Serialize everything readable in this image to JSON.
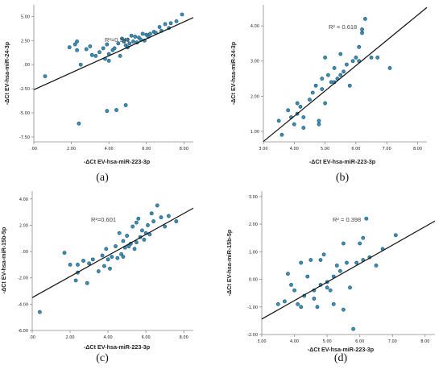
{
  "chart_data": [
    {
      "type": "scatter",
      "panel_label": "(a)",
      "xlabel": "-ΔCt EV-hsa-miR-223-3p",
      "ylabel": "-ΔCt EV-hsa-miR-24-3p",
      "xlim": [
        0,
        8.5
      ],
      "ylim": [
        -8,
        6.2
      ],
      "xticks": [
        0,
        2,
        4,
        6,
        8
      ],
      "xtick_labels": [
        ".00",
        "2.00",
        "4.00",
        "6.00",
        "8.00"
      ],
      "yticks": [
        -7.5,
        -5,
        -2.5,
        0,
        2.5,
        5
      ],
      "ytick_labels": [
        "-7.50",
        "-5.00",
        "-2.50",
        ".00",
        "2.50",
        "5.00"
      ],
      "r2_text": "R²=0.341",
      "fit": {
        "intercept": -2.6,
        "slope": 0.88
      },
      "x": [
        0.6,
        1.9,
        2.2,
        2.3,
        2.3,
        2.5,
        2.8,
        3.0,
        3.1,
        3.3,
        3.5,
        3.7,
        3.8,
        3.9,
        4.0,
        4.0,
        4.2,
        4.3,
        4.5,
        4.6,
        4.7,
        4.8,
        4.8,
        4.9,
        5.0,
        5.0,
        5.1,
        5.2,
        5.3,
        5.4,
        5.5,
        5.6,
        5.7,
        5.8,
        5.9,
        6.0,
        6.1,
        6.2,
        6.4,
        6.5,
        6.7,
        6.8,
        7.0,
        7.2,
        7.3,
        7.6,
        7.9,
        2.4,
        3.9,
        4.4,
        4.9
      ],
      "y": [
        -1.2,
        1.8,
        2.1,
        1.5,
        2.4,
        0.0,
        1.6,
        1.9,
        1.0,
        0.9,
        1.3,
        1.7,
        0.6,
        2.1,
        1.1,
        0.4,
        1.5,
        1.7,
        2.2,
        0.9,
        2.7,
        2.4,
        2.5,
        2.0,
        1.8,
        2.6,
        2.2,
        3.0,
        2.4,
        2.9,
        2.3,
        2.8,
        2.6,
        3.2,
        2.5,
        3.1,
        2.9,
        3.2,
        3.4,
        3.3,
        3.9,
        3.5,
        4.2,
        3.8,
        4.3,
        4.5,
        5.2,
        -6.1,
        -4.8,
        -4.7,
        -4.2
      ]
    },
    {
      "type": "scatter",
      "panel_label": "(b)",
      "xlabel": "-ΔCt EV-hsa-miR-223-3p",
      "ylabel": "-ΔCt EV-hsa-miR-24-3p",
      "xlim": [
        3,
        8.3
      ],
      "ylim": [
        0.7,
        4.6
      ],
      "xticks": [
        3,
        4,
        5,
        6,
        7,
        8
      ],
      "xtick_labels": [
        "3.00",
        "4.00",
        "5.00",
        "6.00",
        "7.00",
        "8.00"
      ],
      "yticks": [
        1,
        2,
        3,
        4
      ],
      "ytick_labels": [
        "1.00",
        "2.00",
        "3.00",
        "4.00"
      ],
      "r2_text": "R² = 0.618",
      "fit": {
        "intercept": -1.45,
        "slope": 0.72
      },
      "x": [
        3.5,
        3.6,
        3.8,
        3.9,
        4.0,
        4.1,
        4.1,
        4.2,
        4.3,
        4.3,
        4.5,
        4.6,
        4.7,
        4.8,
        4.8,
        4.9,
        4.9,
        5.0,
        5.0,
        5.1,
        5.2,
        5.3,
        5.3,
        5.4,
        5.5,
        5.5,
        5.6,
        5.7,
        5.8,
        5.9,
        6.0,
        6.1,
        6.1,
        6.2,
        6.2,
        6.3,
        6.5,
        6.7,
        7.1
      ],
      "y": [
        1.3,
        0.9,
        1.6,
        1.4,
        1.2,
        1.8,
        1.5,
        1.7,
        1.1,
        1.4,
        1.9,
        2.1,
        2.3,
        1.2,
        1.3,
        2.5,
        2.2,
        1.8,
        3.1,
        2.6,
        2.4,
        2.4,
        2.8,
        2.5,
        2.6,
        3.2,
        2.7,
        2.9,
        2.3,
        3.0,
        3.1,
        3.4,
        3.0,
        3.8,
        3.9,
        4.2,
        3.1,
        3.1,
        2.8
      ]
    },
    {
      "type": "scatter",
      "panel_label": "(c)",
      "xlabel": "-ΔCt EV-hsa-miR-223-3p",
      "ylabel": "-ΔCt EV-hsa-miR-15b-5p",
      "xlim": [
        0,
        8.5
      ],
      "ylim": [
        -6,
        4.6
      ],
      "xticks": [
        0,
        2,
        4,
        6,
        8
      ],
      "xtick_labels": [
        ".00",
        "2.00",
        "4.00",
        "6.00",
        "8.00"
      ],
      "yticks": [
        -6,
        -4,
        -2,
        0,
        2,
        4
      ],
      "ytick_labels": [
        "-6.00",
        "-4.00",
        "-2.00",
        ".00",
        "2.00",
        "4.00"
      ],
      "r2_text": "R²=0.601",
      "fit": {
        "intercept": -3.5,
        "slope": 0.8
      },
      "x": [
        0.4,
        1.7,
        2.0,
        2.3,
        2.4,
        2.7,
        2.9,
        3.0,
        3.2,
        3.5,
        3.7,
        3.8,
        3.9,
        4.0,
        4.1,
        4.2,
        4.4,
        4.5,
        4.6,
        4.7,
        4.8,
        4.9,
        5.0,
        5.1,
        5.2,
        5.3,
        5.4,
        5.5,
        5.6,
        5.7,
        5.8,
        5.9,
        6.0,
        6.1,
        6.2,
        6.3,
        6.4,
        6.6,
        6.8,
        7.0,
        7.2,
        7.6,
        2.4,
        4.8,
        5.5
      ],
      "y": [
        -4.6,
        -0.1,
        -1.0,
        -2.2,
        -1.6,
        -0.7,
        -2.4,
        -0.9,
        -0.6,
        -1.5,
        -0.3,
        -1.1,
        0.2,
        -0.6,
        -1.3,
        -0.4,
        0.4,
        -0.5,
        1.4,
        -0.2,
        0.8,
        0.3,
        1.2,
        0.4,
        0.6,
        1.9,
        0.2,
        0.7,
        2.5,
        1.1,
        1.6,
        0.9,
        1.4,
        2.0,
        1.3,
        2.9,
        2.3,
        3.5,
        2.6,
        1.9,
        2.7,
        2.3,
        -1.0,
        -0.4,
        2.2
      ]
    },
    {
      "type": "scatter",
      "panel_label": "(d)",
      "xlabel": "-ΔCt EV-hsa-miR-223-3p",
      "ylabel": "-ΔCt EV-hsa-miR-15b-5p",
      "xlim": [
        3,
        8.3
      ],
      "ylim": [
        -2,
        3.2
      ],
      "xticks": [
        3,
        4,
        5,
        6,
        7,
        8
      ],
      "xtick_labels": [
        "3.00",
        "4.00",
        "5.00",
        "6.00",
        "7.00",
        "8.00"
      ],
      "yticks": [
        -2,
        -1,
        0,
        1,
        2,
        3
      ],
      "ytick_labels": [
        "-2.00",
        "-1.00",
        "0.00",
        "1.00",
        "2.00",
        "3.00"
      ],
      "r2_text": "R² = 0.398",
      "fit": {
        "intercept": -3.45,
        "slope": 0.67
      },
      "x": [
        3.5,
        3.7,
        3.8,
        3.9,
        4.0,
        4.1,
        4.2,
        4.2,
        4.3,
        4.4,
        4.5,
        4.6,
        4.6,
        4.7,
        4.8,
        4.8,
        4.9,
        5.0,
        5.0,
        5.1,
        5.2,
        5.2,
        5.3,
        5.4,
        5.5,
        5.5,
        5.6,
        5.7,
        5.8,
        5.9,
        6.0,
        6.1,
        6.1,
        6.2,
        6.3,
        6.5,
        6.7,
        7.1
      ],
      "y": [
        -0.9,
        -0.8,
        0.2,
        -0.2,
        -0.4,
        -0.9,
        0.6,
        -1.0,
        -0.6,
        0.1,
        0.7,
        -0.7,
        -0.4,
        -1.0,
        -0.2,
        0.7,
        0.9,
        -0.3,
        -0.1,
        -0.4,
        0.1,
        -0.9,
        0.5,
        0.3,
        1.3,
        -1.1,
        0.6,
        -0.3,
        -1.8,
        0.6,
        1.3,
        0.7,
        1.5,
        2.2,
        0.8,
        0.5,
        1.1,
        1.6
      ]
    }
  ]
}
